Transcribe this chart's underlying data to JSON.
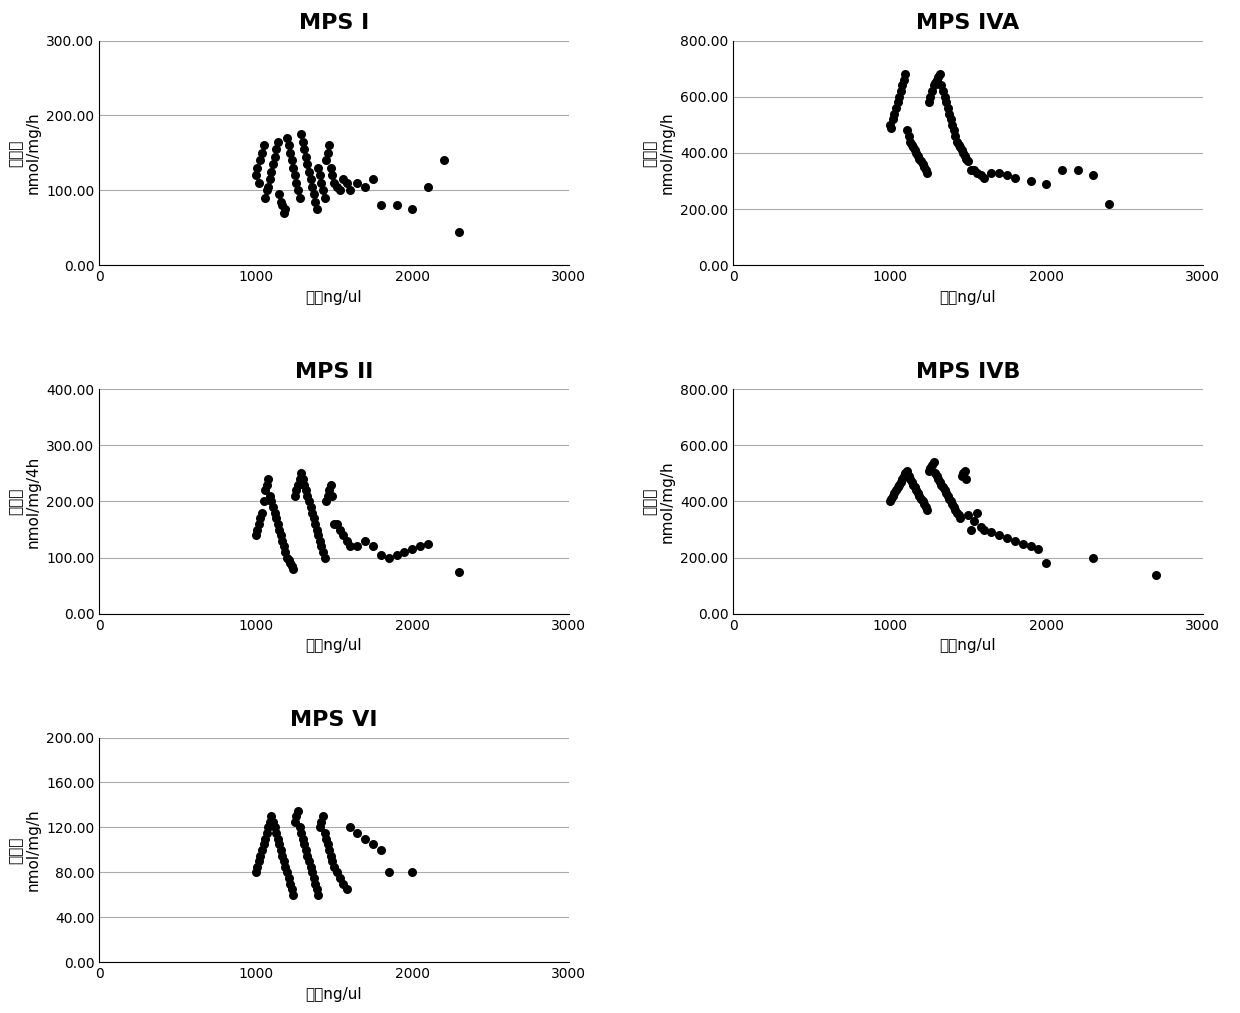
{
  "subplots": [
    {
      "title": "MPS I",
      "ylabel": "酶活性\nnmol/mg/h",
      "xlabel": "浓度ng/ul",
      "xlim": [
        0,
        3000
      ],
      "ylim": [
        0,
        300
      ],
      "yticks": [
        0,
        100,
        200,
        300
      ],
      "ytick_labels": [
        "0.00",
        "100.00",
        "200.00",
        "300.00"
      ],
      "xticks": [
        0,
        1000,
        2000,
        3000
      ],
      "x": [
        1000,
        1010,
        1020,
        1030,
        1040,
        1050,
        1060,
        1070,
        1080,
        1090,
        1100,
        1110,
        1120,
        1130,
        1140,
        1150,
        1160,
        1170,
        1180,
        1190,
        1200,
        1210,
        1220,
        1230,
        1240,
        1250,
        1260,
        1270,
        1280,
        1290,
        1300,
        1310,
        1320,
        1330,
        1340,
        1350,
        1360,
        1370,
        1380,
        1390,
        1400,
        1410,
        1420,
        1430,
        1440,
        1450,
        1460,
        1470,
        1480,
        1490,
        1500,
        1520,
        1540,
        1560,
        1580,
        1600,
        1650,
        1700,
        1750,
        1800,
        1900,
        2000,
        2100,
        2200,
        2300
      ],
      "y": [
        120,
        130,
        110,
        140,
        150,
        160,
        90,
        100,
        105,
        115,
        125,
        135,
        145,
        155,
        165,
        95,
        85,
        80,
        70,
        75,
        170,
        160,
        150,
        140,
        130,
        120,
        110,
        100,
        90,
        175,
        165,
        155,
        145,
        135,
        125,
        115,
        105,
        95,
        85,
        75,
        130,
        120,
        110,
        100,
        90,
        140,
        150,
        160,
        130,
        120,
        110,
        105,
        100,
        115,
        110,
        100,
        110,
        105,
        115,
        80,
        80,
        75,
        105,
        140,
        45
      ]
    },
    {
      "title": "MPS IVA",
      "ylabel": "酶活性\nnmol/mg/h",
      "xlabel": "浓度ng/ul",
      "xlim": [
        0,
        3000
      ],
      "ylim": [
        0,
        800
      ],
      "yticks": [
        0,
        200,
        400,
        600,
        800
      ],
      "ytick_labels": [
        "0.00",
        "200.00",
        "400.00",
        "600.00",
        "800.00"
      ],
      "xticks": [
        0,
        1000,
        2000,
        3000
      ],
      "x": [
        1000,
        1010,
        1020,
        1030,
        1040,
        1050,
        1060,
        1070,
        1080,
        1090,
        1100,
        1110,
        1120,
        1130,
        1140,
        1150,
        1160,
        1170,
        1180,
        1190,
        1200,
        1210,
        1220,
        1230,
        1240,
        1250,
        1260,
        1270,
        1280,
        1290,
        1300,
        1310,
        1320,
        1330,
        1340,
        1350,
        1360,
        1370,
        1380,
        1390,
        1400,
        1410,
        1420,
        1430,
        1440,
        1450,
        1460,
        1470,
        1480,
        1490,
        1500,
        1520,
        1540,
        1560,
        1580,
        1600,
        1650,
        1700,
        1750,
        1800,
        1900,
        2000,
        2100,
        2200,
        2300,
        2400
      ],
      "y": [
        500,
        490,
        520,
        540,
        560,
        580,
        600,
        620,
        640,
        660,
        680,
        480,
        460,
        440,
        430,
        420,
        410,
        400,
        390,
        380,
        370,
        360,
        350,
        340,
        330,
        580,
        600,
        620,
        640,
        650,
        660,
        670,
        680,
        640,
        620,
        600,
        580,
        560,
        540,
        520,
        500,
        480,
        460,
        440,
        430,
        420,
        410,
        400,
        390,
        380,
        370,
        340,
        340,
        330,
        320,
        310,
        330,
        330,
        320,
        310,
        300,
        290,
        340,
        340,
        320,
        220
      ]
    },
    {
      "title": "MPS II",
      "ylabel": "酶活性\nnmol/mg/4h",
      "xlabel": "浓度ng/ul",
      "xlim": [
        0,
        3000
      ],
      "ylim": [
        0,
        400
      ],
      "yticks": [
        0,
        100,
        200,
        300,
        400
      ],
      "ytick_labels": [
        "0.00",
        "100.00",
        "200.00",
        "300.00",
        "400.00"
      ],
      "xticks": [
        0,
        1000,
        2000,
        3000
      ],
      "x": [
        1000,
        1010,
        1020,
        1030,
        1040,
        1050,
        1060,
        1070,
        1080,
        1090,
        1100,
        1110,
        1120,
        1130,
        1140,
        1150,
        1160,
        1170,
        1180,
        1190,
        1200,
        1210,
        1220,
        1230,
        1240,
        1250,
        1260,
        1270,
        1280,
        1290,
        1300,
        1310,
        1320,
        1330,
        1340,
        1350,
        1360,
        1370,
        1380,
        1390,
        1400,
        1410,
        1420,
        1430,
        1440,
        1450,
        1460,
        1470,
        1480,
        1490,
        1500,
        1520,
        1540,
        1560,
        1580,
        1600,
        1650,
        1700,
        1750,
        1800,
        1850,
        1900,
        1950,
        2000,
        2050,
        2100,
        2300
      ],
      "y": [
        140,
        150,
        160,
        170,
        180,
        200,
        220,
        230,
        240,
        210,
        200,
        190,
        180,
        170,
        160,
        150,
        140,
        130,
        120,
        110,
        100,
        95,
        90,
        85,
        80,
        210,
        220,
        230,
        240,
        250,
        240,
        230,
        220,
        210,
        200,
        190,
        180,
        170,
        160,
        150,
        140,
        130,
        120,
        110,
        100,
        200,
        210,
        220,
        230,
        210,
        160,
        160,
        150,
        140,
        130,
        120,
        120,
        130,
        120,
        105,
        100,
        105,
        110,
        115,
        120,
        125,
        75
      ]
    },
    {
      "title": "MPS IVB",
      "ylabel": "酶活性\nnmol/mg/h",
      "xlabel": "浓度ng/ul",
      "xlim": [
        0,
        3000
      ],
      "ylim": [
        0,
        800
      ],
      "yticks": [
        0,
        200,
        400,
        600,
        800
      ],
      "ytick_labels": [
        "0.00",
        "200.00",
        "400.00",
        "600.00",
        "800.00"
      ],
      "xticks": [
        0,
        1000,
        2000,
        3000
      ],
      "x": [
        1000,
        1010,
        1020,
        1030,
        1040,
        1050,
        1060,
        1070,
        1080,
        1090,
        1100,
        1110,
        1120,
        1130,
        1140,
        1150,
        1160,
        1170,
        1180,
        1190,
        1200,
        1210,
        1220,
        1230,
        1240,
        1250,
        1260,
        1270,
        1280,
        1290,
        1300,
        1310,
        1320,
        1330,
        1340,
        1350,
        1360,
        1370,
        1380,
        1390,
        1400,
        1410,
        1420,
        1430,
        1440,
        1450,
        1460,
        1470,
        1480,
        1490,
        1500,
        1520,
        1540,
        1560,
        1580,
        1600,
        1650,
        1700,
        1750,
        1800,
        1850,
        1900,
        1950,
        2000,
        2300,
        2700
      ],
      "y": [
        400,
        410,
        420,
        430,
        440,
        450,
        460,
        470,
        480,
        490,
        500,
        510,
        490,
        480,
        470,
        460,
        450,
        440,
        430,
        420,
        410,
        400,
        390,
        380,
        370,
        510,
        520,
        530,
        540,
        500,
        490,
        480,
        470,
        460,
        450,
        440,
        430,
        420,
        410,
        400,
        390,
        380,
        370,
        360,
        350,
        340,
        490,
        500,
        510,
        480,
        350,
        300,
        330,
        360,
        310,
        300,
        290,
        280,
        270,
        260,
        250,
        240,
        230,
        180,
        200,
        140
      ]
    },
    {
      "title": "MPS VI",
      "ylabel": "酶活性\nnmol/mg/h",
      "xlabel": "浓度ng/ul",
      "xlim": [
        0,
        3000
      ],
      "ylim": [
        0,
        200
      ],
      "yticks": [
        0,
        40,
        80,
        120,
        160,
        200
      ],
      "ytick_labels": [
        "0.00",
        "40.00",
        "80.00",
        "120.00",
        "160.00",
        "200.00"
      ],
      "xticks": [
        0,
        1000,
        2000,
        3000
      ],
      "x": [
        1000,
        1010,
        1020,
        1030,
        1040,
        1050,
        1060,
        1070,
        1080,
        1090,
        1100,
        1110,
        1120,
        1130,
        1140,
        1150,
        1160,
        1170,
        1180,
        1190,
        1200,
        1210,
        1220,
        1230,
        1240,
        1250,
        1260,
        1270,
        1280,
        1290,
        1300,
        1310,
        1320,
        1330,
        1340,
        1350,
        1360,
        1370,
        1380,
        1390,
        1400,
        1410,
        1420,
        1430,
        1440,
        1450,
        1460,
        1470,
        1480,
        1490,
        1500,
        1520,
        1540,
        1560,
        1580,
        1600,
        1650,
        1700,
        1750,
        1800,
        1850,
        2000
      ],
      "y": [
        80,
        85,
        90,
        95,
        100,
        105,
        110,
        115,
        120,
        125,
        130,
        125,
        120,
        115,
        110,
        105,
        100,
        95,
        90,
        85,
        80,
        75,
        70,
        65,
        60,
        125,
        130,
        135,
        120,
        115,
        110,
        105,
        100,
        95,
        90,
        85,
        80,
        75,
        70,
        65,
        60,
        120,
        125,
        130,
        115,
        110,
        105,
        100,
        95,
        90,
        85,
        80,
        75,
        70,
        65,
        120,
        115,
        110,
        105,
        100,
        80,
        80
      ]
    }
  ],
  "dot_color": "#000000",
  "dot_size": 30,
  "background_color": "#ffffff",
  "grid_color": "#aaaaaa",
  "title_fontsize": 16,
  "label_fontsize": 11,
  "tick_fontsize": 10
}
